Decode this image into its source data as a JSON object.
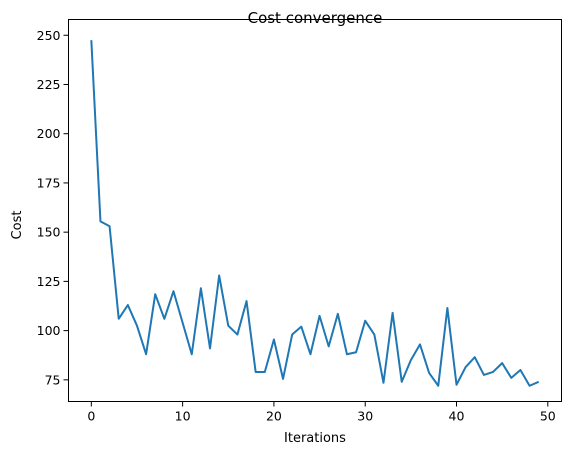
{
  "chart_data": {
    "type": "line",
    "title": "Cost convergence",
    "xlabel": "Iterations",
    "ylabel": "Cost",
    "xlim": [
      -2.5,
      51.5
    ],
    "ylim": [
      64,
      258
    ],
    "xticks": [
      0,
      10,
      20,
      30,
      40,
      50
    ],
    "yticks": [
      75,
      100,
      125,
      150,
      175,
      200,
      225,
      250
    ],
    "grid": false,
    "line_color": "#1f77b4",
    "series": [
      {
        "x": [
          0,
          1,
          2,
          3,
          4,
          5,
          6,
          7,
          8,
          9,
          10,
          11,
          12,
          13,
          14,
          15,
          16,
          17,
          18,
          19,
          20,
          21,
          22,
          23,
          24,
          25,
          26,
          27,
          28,
          29,
          30,
          31,
          32,
          33,
          34,
          35,
          36,
          37,
          38,
          39,
          40,
          41,
          42,
          43,
          44,
          45,
          46,
          47,
          48,
          49
        ],
        "values": [
          247.5,
          155.5,
          153.0,
          106.0,
          113.0,
          102.5,
          88.0,
          118.5,
          106.0,
          120.0,
          104.0,
          88.0,
          121.5,
          91.0,
          128.0,
          102.5,
          98.0,
          115.0,
          79.0,
          79.0,
          95.5,
          75.5,
          98.0,
          102.0,
          88.0,
          107.5,
          92.0,
          108.5,
          88.0,
          89.0,
          105.0,
          98.0,
          73.5,
          109.0,
          74.0,
          85.0,
          93.0,
          78.5,
          72.0,
          111.5,
          72.5,
          81.5,
          86.5,
          77.5,
          79.0,
          83.5,
          76.0,
          80.0,
          72.0,
          74.0
        ]
      }
    ]
  }
}
